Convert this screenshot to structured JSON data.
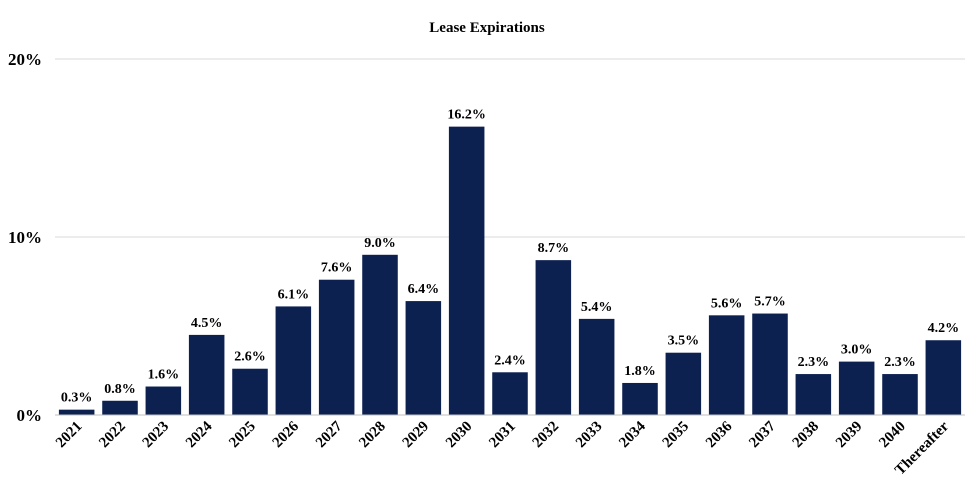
{
  "chart_data": {
    "type": "bar",
    "title": "Lease Expirations",
    "xlabel": "",
    "ylabel": "",
    "ylim": [
      0,
      20
    ],
    "yticks": [
      0,
      10,
      20
    ],
    "ytick_labels": [
      "0%",
      "10%",
      "20%"
    ],
    "grid": true,
    "legend": "none",
    "bar_color": "#0d2151",
    "categories": [
      "2021",
      "2022",
      "2023",
      "2024",
      "2025",
      "2026",
      "2027",
      "2028",
      "2029",
      "2030",
      "2031",
      "2032",
      "2033",
      "2034",
      "2035",
      "2036",
      "2037",
      "2038",
      "2039",
      "2040",
      "Thereafter"
    ],
    "values": [
      0.3,
      0.8,
      1.6,
      4.5,
      2.6,
      6.1,
      7.6,
      9.0,
      6.4,
      16.2,
      2.4,
      8.7,
      5.4,
      1.8,
      3.5,
      5.6,
      5.7,
      2.3,
      3.0,
      2.3,
      4.2
    ],
    "value_labels": [
      "0.3%",
      "0.8%",
      "1.6%",
      "4.5%",
      "2.6%",
      "6.1%",
      "7.6%",
      "9.0%",
      "6.4%",
      "16.2%",
      "2.4%",
      "8.7%",
      "5.4%",
      "1.8%",
      "3.5%",
      "5.6%",
      "5.7%",
      "2.3%",
      "3.0%",
      "2.3%",
      "4.2%"
    ]
  }
}
